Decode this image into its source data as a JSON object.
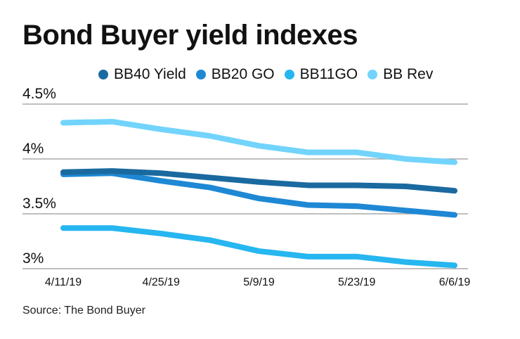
{
  "chart_data": {
    "type": "line",
    "title": "Bond Buyer yield indexes",
    "source": "Source: The Bond Buyer",
    "xlabel": "",
    "ylabel": "",
    "x": [
      "4/11/19",
      "4/18/19",
      "4/25/19",
      "5/2/19",
      "5/9/19",
      "5/16/19",
      "5/23/19",
      "5/30/19",
      "6/6/19"
    ],
    "x_tick_labels": [
      "4/11/19",
      "4/25/19",
      "5/9/19",
      "5/23/19",
      "6/6/19"
    ],
    "y_tick_labels": [
      "4.5%",
      "4%",
      "3.5%",
      "3%"
    ],
    "y_ticks": [
      4.5,
      4.0,
      3.5,
      3.0
    ],
    "ylim": [
      3.0,
      4.5
    ],
    "grid": "horizontal",
    "legend_placement": "top",
    "series": [
      {
        "name": "BB40 Yield",
        "color": "#1a6aa0",
        "values": [
          3.88,
          3.89,
          3.87,
          3.83,
          3.79,
          3.76,
          3.76,
          3.75,
          3.71
        ]
      },
      {
        "name": "BB20 GO",
        "color": "#1e88d4",
        "values": [
          3.86,
          3.87,
          3.8,
          3.74,
          3.64,
          3.58,
          3.57,
          3.53,
          3.49
        ]
      },
      {
        "name": "BB11GO",
        "color": "#26b6f0",
        "values": [
          3.37,
          3.37,
          3.32,
          3.26,
          3.16,
          3.11,
          3.11,
          3.06,
          3.03
        ]
      },
      {
        "name": "BB Rev",
        "color": "#72d4fc",
        "values": [
          4.33,
          4.34,
          4.27,
          4.21,
          4.12,
          4.06,
          4.06,
          4.0,
          3.97
        ]
      }
    ]
  }
}
